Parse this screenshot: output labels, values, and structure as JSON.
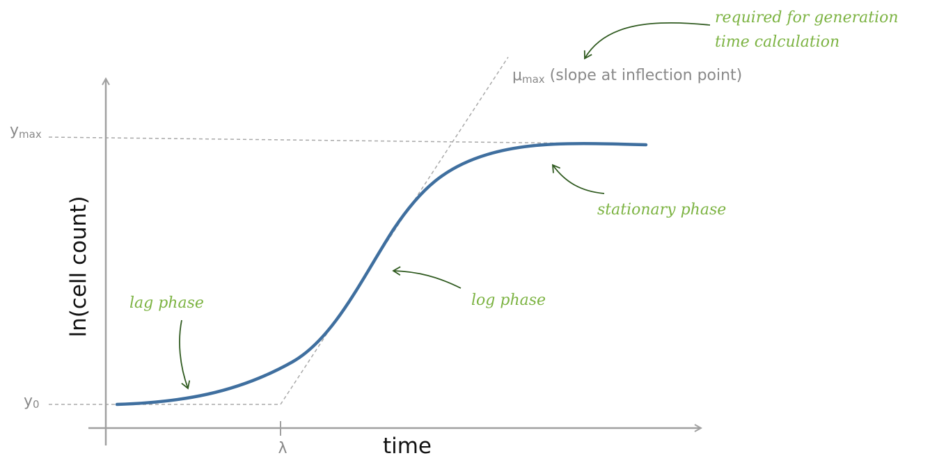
{
  "axes": {
    "y_title": "ln(cell count)",
    "x_title": "time"
  },
  "markers": {
    "y_max": {
      "base": "y",
      "sub": "max"
    },
    "y_0": {
      "base": "y",
      "sub": "0"
    },
    "lambda": "λ",
    "mu_max": {
      "base": "μ",
      "sub": "max",
      "suffix": " (slope at inflection point)"
    }
  },
  "annotations": {
    "lag_phase": "lag phase",
    "log_phase": "log phase",
    "stationary_phase": "stationary phase",
    "generation_note": [
      "required for generation",
      "time calculation"
    ]
  },
  "colors": {
    "curve": "#3f6f9f",
    "axis": "#a0a0a0",
    "guide": "#a8a8a8",
    "annotation_text": "#7cb342",
    "annotation_arrow": "#2f5a1f"
  }
}
